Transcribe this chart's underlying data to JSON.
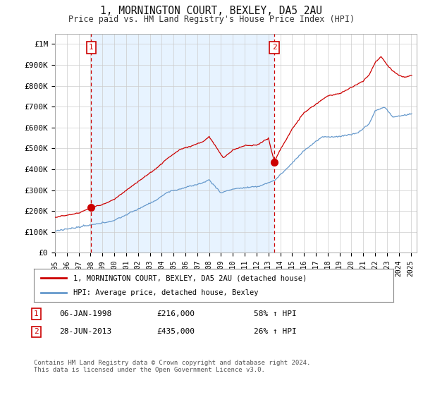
{
  "title": "1, MORNINGTON COURT, BEXLEY, DA5 2AU",
  "subtitle": "Price paid vs. HM Land Registry's House Price Index (HPI)",
  "legend_line1": "1, MORNINGTON COURT, BEXLEY, DA5 2AU (detached house)",
  "legend_line2": "HPI: Average price, detached house, Bexley",
  "sale1_label": "1",
  "sale1_date": "06-JAN-1998",
  "sale1_price": "£216,000",
  "sale1_hpi": "58% ↑ HPI",
  "sale1_year": 1998.05,
  "sale1_value": 216000,
  "sale2_label": "2",
  "sale2_date": "28-JUN-2013",
  "sale2_price": "£435,000",
  "sale2_hpi": "26% ↑ HPI",
  "sale2_year": 2013.5,
  "sale2_value": 435000,
  "footer": "Contains HM Land Registry data © Crown copyright and database right 2024.\nThis data is licensed under the Open Government Licence v3.0.",
  "ylim": [
    0,
    1050000
  ],
  "yticks": [
    0,
    100000,
    200000,
    300000,
    400000,
    500000,
    600000,
    700000,
    800000,
    900000,
    1000000
  ],
  "ytick_labels": [
    "£0",
    "£100K",
    "£200K",
    "£300K",
    "£400K",
    "£500K",
    "£600K",
    "£700K",
    "£800K",
    "£900K",
    "£1M"
  ],
  "xlim_start": 1995.0,
  "xlim_end": 2025.5,
  "red_color": "#cc0000",
  "blue_color": "#6699cc",
  "shade_color": "#ddeeff",
  "background_color": "#ffffff",
  "grid_color": "#cccccc"
}
